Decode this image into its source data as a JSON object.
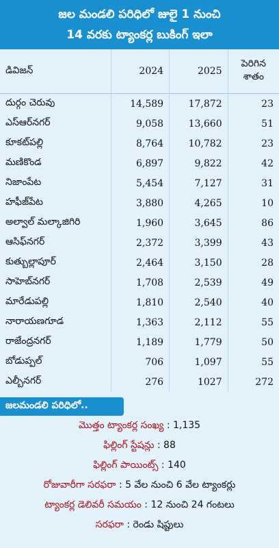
{
  "header": {
    "title_line1": "జల మండలి పరిధిలో జులై 1 నుంచి",
    "title_line2": "14 వరకు ట్యాంకర్ల బుకింగ్ ఇలా"
  },
  "table": {
    "columns": [
      "డివిజన్",
      "2024",
      "2025",
      "పెరిగిన శాతం"
    ],
    "rows": [
      [
        "దుర్గం చెరువు",
        "14,589",
        "17,872",
        "23"
      ],
      [
        "ఎస్ఆర్‌నగర్",
        "9,058",
        "13,660",
        "51"
      ],
      [
        "కూకట్‌పల్లి",
        "8,764",
        "10,782",
        "23"
      ],
      [
        "మణికొండ",
        "6,897",
        "9,822",
        "42"
      ],
      [
        "నిజాంపేట",
        "5,454",
        "7,127",
        "31"
      ],
      [
        "హఫీజ్‌పేట",
        "3,880",
        "4,265",
        "10"
      ],
      [
        "అల్వాల్ మల్కాజిగిరి",
        "1,960",
        "3,645",
        "86"
      ],
      [
        "ఆసిఫ్‌నగర్",
        "2,372",
        "3,399",
        "43"
      ],
      [
        "కుత్బుల్లాపూర్",
        "2,464",
        "3,150",
        "28"
      ],
      [
        "సాహెబ్‌నగర్",
        "1,708",
        "2,539",
        "49"
      ],
      [
        "మారేడుపల్లి",
        "1,810",
        "2,540",
        "40"
      ],
      [
        "నారాయణగూడ",
        "1,363",
        "2,112",
        "55"
      ],
      [
        "రాజేంద్రనగర్",
        "1,189",
        "1,779",
        "50"
      ],
      [
        "బోడుప్పల్",
        "706",
        "1,097",
        "55"
      ],
      [
        "ఎల్బీనగర్",
        "276",
        "1027",
        "272"
      ]
    ]
  },
  "summary": {
    "heading": "జలమండలి పరిధిలో..",
    "items": [
      {
        "label": "మొత్తం ట్యాంకర్ల సంఖ్య",
        "value": ": 1,135"
      },
      {
        "label": "ఫిల్లింగ్ స్టేషన్లు",
        "value": ": 88"
      },
      {
        "label": "ఫిల్లింగ్ పాయింట్స్",
        "value": ": 140"
      },
      {
        "label": "రోజువారీగా సరఫరా",
        "value": ": 5 వేల నుంచి 6 వేల ట్యాంకర్లు"
      },
      {
        "label": "ట్యాంకర్ల డెలివరీ సమయం",
        "value": ": 12 నుంచి 24 గంటలు"
      },
      {
        "label": "సరఫరా",
        "value": ": రెండు షిప్టులు"
      }
    ]
  }
}
